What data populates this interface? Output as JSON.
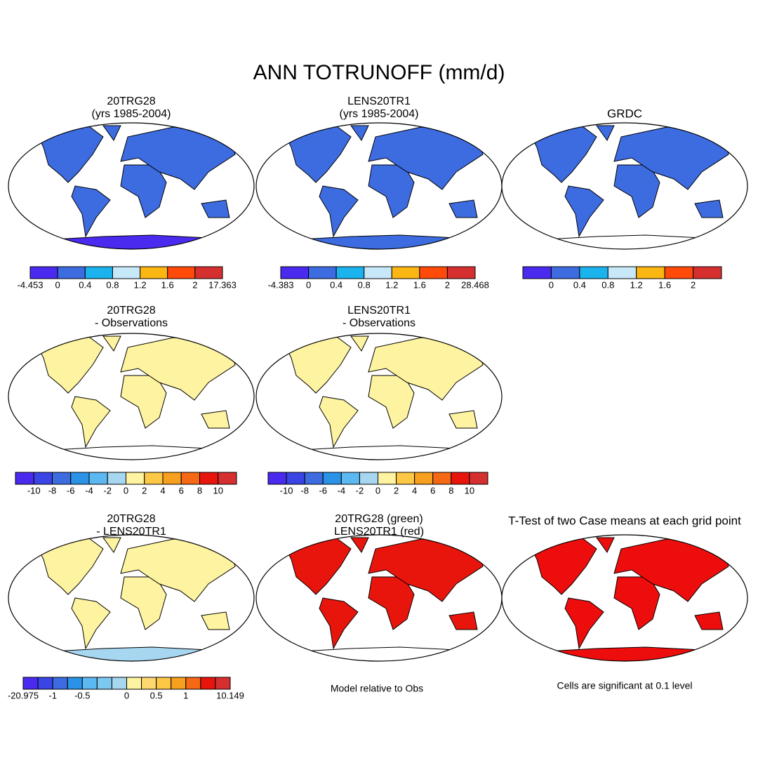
{
  "title": "ANN TOTRUNOFF (mm/d)",
  "panels": [
    {
      "title": [
        "20TRG28",
        "(yrs 1985-2004)"
      ],
      "land_color": "#3d6be0",
      "antarctica_color": "#4b2af0"
    },
    {
      "title": [
        "LENS20TR1",
        "(yrs 1985-2004)"
      ],
      "land_color": "#3d6be0",
      "antarctica_color": "#3d6be0"
    },
    {
      "title": [
        "GRDC"
      ],
      "land_color": "#3d6be0",
      "antarctica_color": "#ffffff"
    },
    {
      "title": [
        "20TRG28",
        "- Observations"
      ],
      "land_color": "#fdf3a0",
      "antarctica_color": "#ffffff"
    },
    {
      "title": [
        "LENS20TR1",
        "- Observations"
      ],
      "land_color": "#fdf3a0",
      "antarctica_color": "#ffffff"
    },
    null,
    {
      "title": [
        "20TRG28",
        "- LENS20TR1"
      ],
      "land_color": "#fdf3a0",
      "antarctica_color": "#a7d6f0"
    },
    {
      "title": [
        "20TRG28 (green)",
        "LENS20TR1 (red)"
      ],
      "land_color": "#e8150c",
      "antarctica_color": "#ffffff"
    },
    {
      "title": [
        "T-Test of two Case means at each grid point"
      ],
      "land_color": "#ee0d0d",
      "antarctica_color": "#ee0d0d"
    }
  ],
  "colorbars": [
    {
      "colors": [
        "#4b2af0",
        "#3d6be0",
        "#1bb3ee",
        "#c7e8f8",
        "#fbb614",
        "#ff4a0a",
        "#d62f2f"
      ],
      "labels": [
        "-4.453",
        "0",
        "0.4",
        "0.8",
        "1.2",
        "1.6",
        "2",
        "17.363"
      ]
    },
    {
      "colors": [
        "#4b2af0",
        "#3d6be0",
        "#1bb3ee",
        "#c7e8f8",
        "#fbb614",
        "#ff4a0a",
        "#d62f2f"
      ],
      "labels": [
        "-4.383",
        "0",
        "0.4",
        "0.8",
        "1.2",
        "1.6",
        "2",
        "28.468"
      ]
    },
    {
      "colors": [
        "#4b2af0",
        "#3d6be0",
        "#1bb3ee",
        "#c7e8f8",
        "#fbb614",
        "#ff4a0a",
        "#d62f2f"
      ],
      "labels": [
        null,
        "0",
        "0.4",
        "0.8",
        "1.2",
        "1.6",
        "2",
        null
      ]
    },
    {
      "colors": [
        "#4b2af0",
        "#3a45e6",
        "#3d6be0",
        "#2a93e8",
        "#5cb8f0",
        "#a7d6f0",
        "#fdf3a0",
        "#fdc846",
        "#f79f1e",
        "#f56814",
        "#e8150c",
        "#d62f2f"
      ],
      "labels": [
        null,
        "-10",
        "-8",
        "-6",
        "-4",
        "-2",
        "0",
        "2",
        "4",
        "6",
        "8",
        "10",
        null
      ]
    },
    {
      "colors": [
        "#4b2af0",
        "#3a45e6",
        "#3d6be0",
        "#2a93e8",
        "#5cb8f0",
        "#a7d6f0",
        "#fdf3a0",
        "#fdc846",
        "#f79f1e",
        "#f56814",
        "#e8150c",
        "#d62f2f"
      ],
      "labels": [
        null,
        "-10",
        "-8",
        "-6",
        "-4",
        "-2",
        "0",
        "2",
        "4",
        "6",
        "8",
        "10",
        null
      ]
    },
    null,
    {
      "colors": [
        "#4b2af0",
        "#3a45e6",
        "#3d6be0",
        "#2a93e8",
        "#5cb8f0",
        "#7cc8f0",
        "#a7d6f0",
        "#fdf3a0",
        "#fdd870",
        "#fdc846",
        "#f79f1e",
        "#f56814",
        "#e8150c",
        "#d62f2f"
      ],
      "labels": [
        "-20.975",
        null,
        "-1",
        null,
        "-0.5",
        null,
        null,
        "0",
        null,
        "0.5",
        null,
        "1",
        null,
        null,
        "10.149"
      ]
    },
    null,
    null
  ],
  "footnotes": [
    "Model relative to Obs",
    "Cells are significant at 0.1 level"
  ]
}
